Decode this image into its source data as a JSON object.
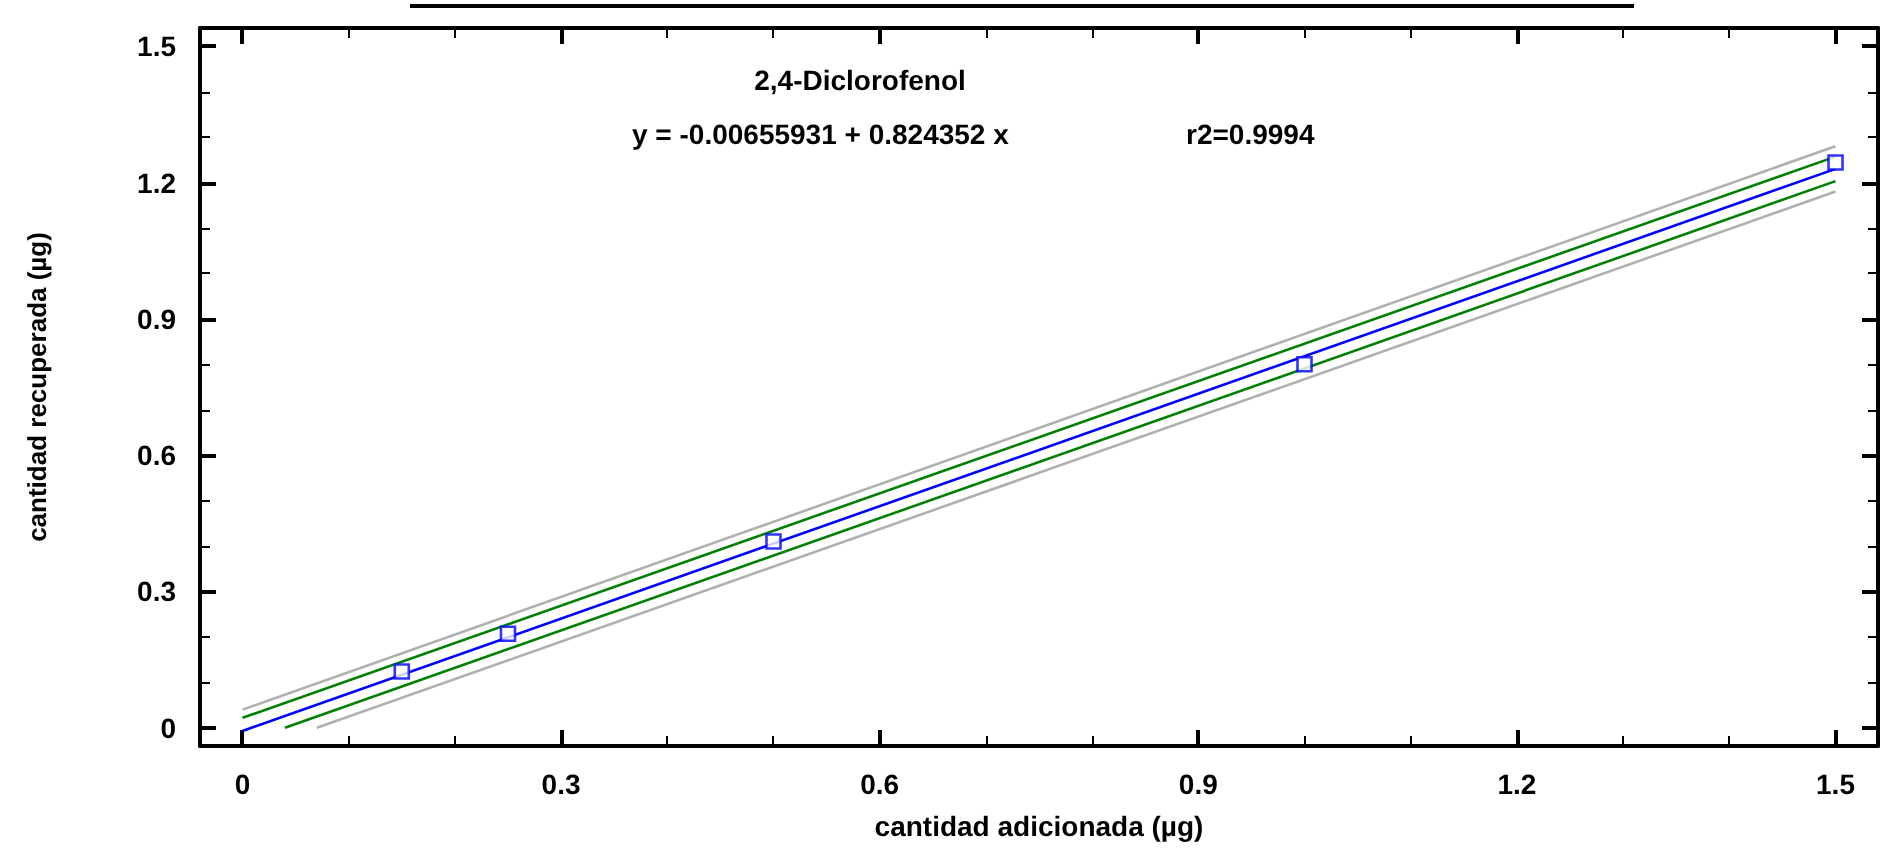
{
  "chart_data": {
    "type": "scatter",
    "title": "2,4-Diclorofenol",
    "annotations": [
      "y = -0.00655931 + 0.824352 x",
      "r2=0.9994"
    ],
    "xlabel": "cantidad adicionada (µg)",
    "ylabel": "cantidad recuperada (µg)",
    "x": [
      0.15,
      0.25,
      0.5,
      1.0,
      1.5
    ],
    "series": [
      {
        "color": "#0000ff",
        "values": [
          0.124,
          0.207,
          0.41,
          0.8,
          1.244
        ],
        "marker": "square"
      },
      {
        "type": "line",
        "color": "#0000ff",
        "x": [
          0,
          1.5
        ],
        "values": [
          -0.007,
          1.23
        ]
      },
      {
        "type": "line",
        "color": "#008000",
        "x": [
          0,
          1.5
        ],
        "values": [
          0.022,
          1.257
        ]
      },
      {
        "type": "line",
        "color": "#008000",
        "x": [
          0.04,
          1.5
        ],
        "values": [
          0,
          1.203
        ]
      },
      {
        "type": "line",
        "color": "#b0b0b0",
        "x": [
          0,
          1.5
        ],
        "values": [
          0.04,
          1.28
        ]
      },
      {
        "type": "line",
        "color": "#b0b0b0",
        "x": [
          0.07,
          1.5
        ],
        "values": [
          0,
          1.18
        ]
      }
    ],
    "xlim": [
      -0.04,
      1.54
    ],
    "ylim": [
      -0.04,
      1.54
    ],
    "xticks": [
      0,
      0.3,
      0.6,
      0.9,
      1.2,
      1.5
    ],
    "yticks": [
      0,
      0.3,
      0.6,
      0.9,
      1.2,
      1.5
    ],
    "grid": false
  }
}
